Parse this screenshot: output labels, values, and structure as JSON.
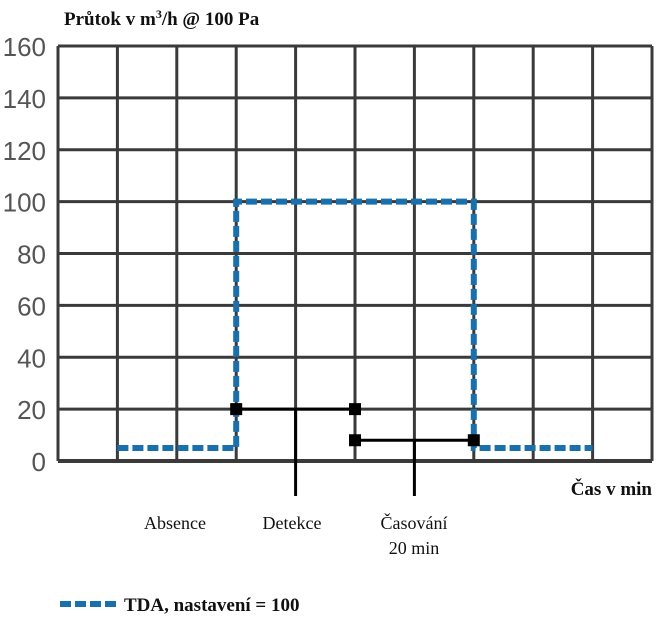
{
  "chart_data": {
    "type": "line",
    "title": "Průtok v m³/h @ 100 Pa",
    "title_parts": {
      "pre": "Průtok v m",
      "sup": "3",
      "post": "/h @ 100 Pa"
    },
    "xlabel": "Čas v min",
    "ylabel": "Průtok v m³/h @ 100 Pa",
    "ylim": [
      0,
      160
    ],
    "xlim": [
      0,
      10
    ],
    "yticks": [
      0,
      20,
      40,
      60,
      80,
      100,
      120,
      140,
      160
    ],
    "xgrid": [
      0,
      1,
      2,
      3,
      4,
      5,
      6,
      7,
      8,
      9,
      10
    ],
    "grid": true,
    "legend_position": "bottom-left",
    "series": [
      {
        "name": "TDA, nastavení = 100",
        "color": "#1a6fad",
        "style": "dashed",
        "x": [
          1,
          3,
          3,
          7,
          7,
          9
        ],
        "y": [
          5,
          5,
          100,
          100,
          5,
          5
        ]
      }
    ],
    "annotations": [
      {
        "label": "Detekce",
        "x_start": 3,
        "x_end": 5,
        "y": 20,
        "pointer_x": 4
      },
      {
        "label_lines": [
          "Časování",
          "20 min"
        ],
        "x_start": 5,
        "x_end": 7,
        "y": 8,
        "pointer_x": 6
      }
    ],
    "phase_labels": [
      "Absence",
      "Detekce",
      "Časování",
      "20 min"
    ]
  }
}
